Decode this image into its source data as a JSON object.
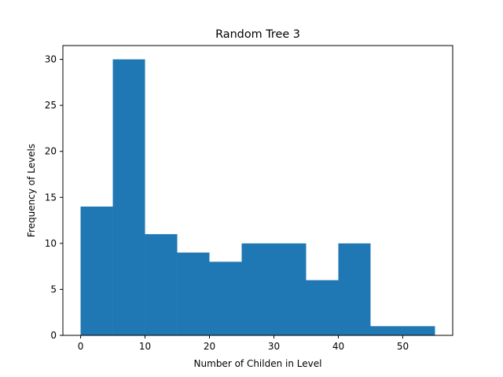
{
  "chart_data": {
    "type": "bar",
    "title": "Random Tree 3",
    "xlabel": "Number of Childen in Level",
    "ylabel": "Frequency of Levels",
    "bin_edges": [
      0,
      5,
      10,
      15,
      20,
      25,
      30,
      35,
      40,
      45,
      50,
      55
    ],
    "values": [
      14,
      30,
      11,
      9,
      8,
      10,
      10,
      6,
      10,
      1,
      1
    ],
    "xlim": [
      -2.75,
      57.75
    ],
    "ylim": [
      0,
      31.5
    ],
    "xticks": [
      0,
      10,
      20,
      30,
      40,
      50
    ],
    "yticks": [
      0,
      5,
      10,
      15,
      20,
      25,
      30
    ],
    "grid": false,
    "bar_color": "#1f77b4"
  }
}
